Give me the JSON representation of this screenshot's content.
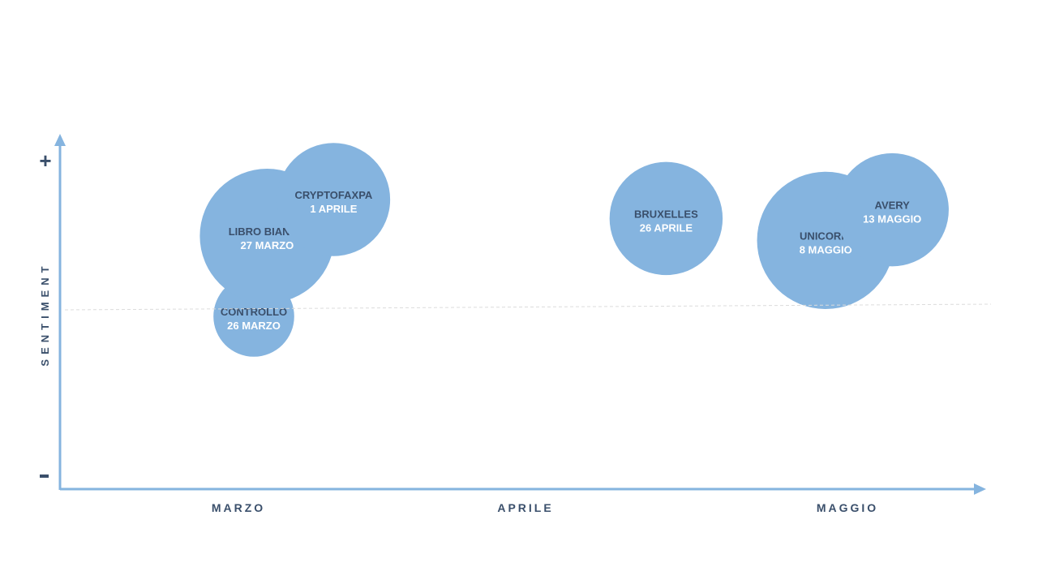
{
  "chart_data": {
    "type": "scatter",
    "title": "",
    "xlabel": "",
    "ylabel": "SENTIMENT",
    "y_max_label": "+",
    "y_min_label": "-",
    "categories": [
      "MARZO",
      "APRILE",
      "MAGGIO"
    ],
    "grid": false,
    "reference_line": "neutral",
    "colors": {
      "bubble": "#85b4df",
      "axis": "#85b4df",
      "text_dark": "#3a4f6b",
      "text_light": "#ffffff",
      "reference": "#dcdcdc"
    },
    "points": [
      {
        "name": "CONTROLLO",
        "date": "26 MARZO",
        "day_of_year": 85,
        "sentiment": -0.1,
        "size": 0.6
      },
      {
        "name": "LIBRO BIANCO",
        "date": "27 MARZO",
        "day_of_year": 86,
        "sentiment": 0.45,
        "size": 1.0
      },
      {
        "name": "CRYPTOFAXPA",
        "date": "1 APRILE",
        "day_of_year": 91,
        "sentiment": 0.7,
        "size": 0.84
      },
      {
        "name": "BRUXELLES",
        "date": "26 APRILE",
        "day_of_year": 116,
        "sentiment": 0.57,
        "size": 0.84
      },
      {
        "name": "UNICORNI",
        "date": "8 MAGGIO",
        "day_of_year": 128,
        "sentiment": 0.42,
        "size": 1.02
      },
      {
        "name": "AVERY",
        "date": "13 MAGGIO",
        "day_of_year": 133,
        "sentiment": 0.63,
        "size": 0.84
      }
    ]
  }
}
